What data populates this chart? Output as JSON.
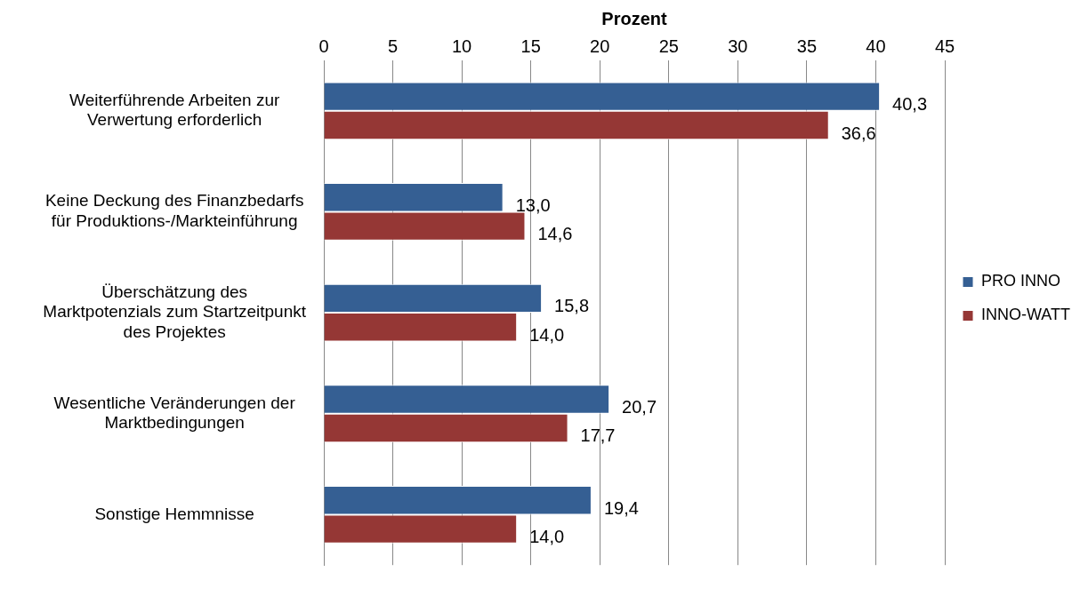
{
  "chart_data": {
    "type": "bar",
    "orientation": "horizontal",
    "xlabel": "Prozent",
    "categories": [
      "Weiterführende Arbeiten zur Verwertung erforderlich",
      "Keine Deckung des Finanzbedarfs für Produktions-/Markteinführung",
      "Überschätzung des Marktpotenzials zum Startzeitpunkt des Projektes",
      "Wesentliche Veränderungen der Marktbedingungen",
      "Sonstige Hemmnisse"
    ],
    "series": [
      {
        "name": "PRO INNO",
        "color": "#355f93",
        "values": [
          40.3,
          13.0,
          15.8,
          20.7,
          19.4
        ],
        "value_labels": [
          "40,3",
          "13,0",
          "15,8",
          "20,7",
          "19,4"
        ]
      },
      {
        "name": "INNO-WATT",
        "color": "#953735",
        "values": [
          36.6,
          14.6,
          14.0,
          17.7,
          14.0
        ],
        "value_labels": [
          "36,6",
          "14,6",
          "14,0",
          "17,7",
          "14,0"
        ]
      }
    ],
    "xlim": [
      0,
      45
    ],
    "xticks": [
      0,
      5,
      10,
      15,
      20,
      25,
      30,
      35,
      40,
      45
    ],
    "grid": "x",
    "legend": "right"
  }
}
